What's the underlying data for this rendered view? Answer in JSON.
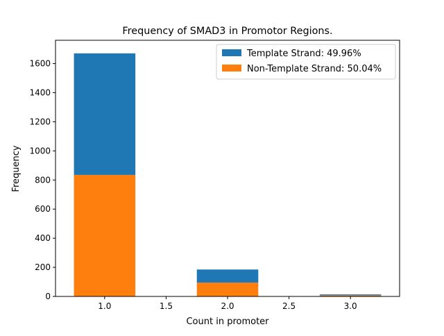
{
  "chart_data": {
    "type": "bar",
    "stacked": true,
    "title": "Frequency of SMAD3 in Promotor Regions.",
    "xlabel": "Count in promoter",
    "ylabel": "Frequency",
    "xlim": [
      0.6,
      3.4
    ],
    "ylim": [
      0,
      1760
    ],
    "bar_width": 0.5,
    "x": [
      1.0,
      2.0,
      3.0
    ],
    "series": [
      {
        "name": "Non-Template Strand: 50.04%",
        "color": "#ff7f0e",
        "values": [
          835,
          95,
          8
        ]
      },
      {
        "name": "Template Strand: 49.96%",
        "color": "#1f77b4",
        "values": [
          835,
          90,
          6
        ]
      }
    ],
    "legend_order": [
      1,
      0
    ],
    "legend_position": "top-right",
    "xticks": [
      1.0,
      1.5,
      2.0,
      2.5,
      3.0
    ],
    "xtick_labels": [
      "1.0",
      "1.5",
      "2.0",
      "2.5",
      "3.0"
    ],
    "yticks": [
      0,
      200,
      400,
      600,
      800,
      1000,
      1200,
      1400,
      1600
    ],
    "ytick_labels": [
      "0",
      "200",
      "400",
      "600",
      "800",
      "1000",
      "1200",
      "1400",
      "1600"
    ],
    "grid": false
  }
}
